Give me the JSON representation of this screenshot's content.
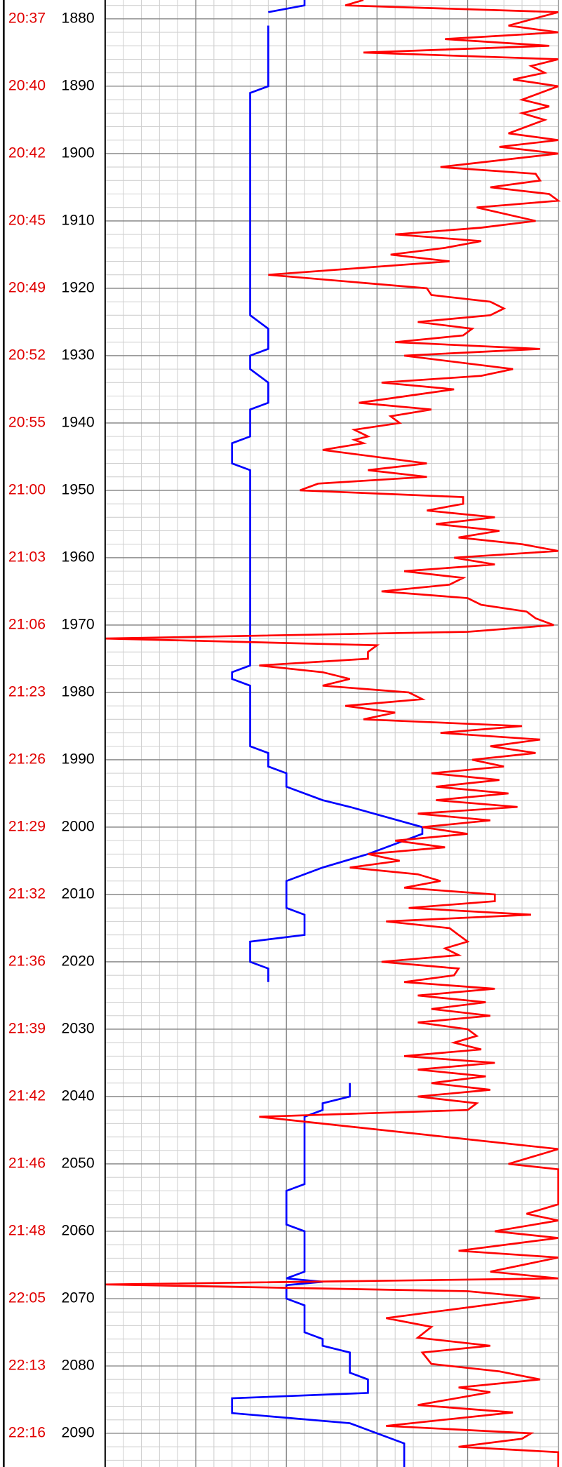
{
  "chart_data": {
    "type": "well-log",
    "ylim": [
      1877.2,
      2095
    ],
    "yticks": [
      1880,
      1890,
      1900,
      1910,
      1920,
      1930,
      1940,
      1950,
      1960,
      1970,
      1980,
      1990,
      2000,
      2010,
      2020,
      2030,
      2040,
      2050,
      2060,
      2070,
      2080,
      2090
    ],
    "time_labels": [
      "20:37",
      "20:40",
      "20:42",
      "20:45",
      "20:49",
      "20:52",
      "20:55",
      "21:00",
      "21:03",
      "21:06",
      "21:23",
      "21:26",
      "21:29",
      "21:32",
      "21:36",
      "21:39",
      "21:42",
      "21:46",
      "21:48",
      "22:05",
      "22:13",
      "22:16"
    ],
    "time_color": "#e00000",
    "xlim": [
      0,
      100
    ],
    "xticks": [
      0,
      20,
      40,
      60,
      80,
      100
    ],
    "grid": true,
    "series": [
      {
        "color": "#0000ff",
        "depth": [
          1877.2,
          1878,
          1879,
          null,
          1881,
          1890,
          1891,
          1924,
          1926,
          1929,
          1930,
          1932,
          1934,
          1937,
          1938,
          1942,
          1943,
          1946,
          1947,
          1976,
          1977,
          1978,
          1979,
          1988,
          1989,
          1991,
          1992,
          1994,
          1996,
          1997,
          2000,
          2001,
          2004,
          2006,
          2008,
          2012,
          2013,
          2016,
          2017,
          2020,
          2021,
          2023,
          null,
          2038,
          2040,
          2041,
          2042,
          2043,
          2053,
          2054,
          2059,
          2060,
          2066,
          2067,
          2067.5,
          2068,
          2070,
          2071,
          2075,
          2076,
          2077,
          2078,
          2081,
          2082,
          2084,
          2084.8,
          2087,
          2088.5,
          2091.5,
          2095
        ],
        "values": [
          44,
          44,
          36,
          null,
          36,
          36,
          32,
          32,
          36,
          36,
          32,
          32,
          36,
          36,
          32,
          32,
          28,
          28,
          32,
          32,
          28,
          28,
          32,
          32,
          36,
          36,
          40,
          40,
          48,
          54,
          70,
          70,
          58,
          48,
          40,
          40,
          44,
          44,
          32,
          32,
          36,
          36,
          null,
          54,
          54,
          48,
          48,
          44,
          44,
          40,
          40,
          44,
          44,
          40,
          48,
          40,
          40,
          44,
          44,
          48,
          48,
          54,
          54,
          58,
          58,
          28,
          28,
          54,
          66,
          66
        ]
      },
      {
        "color": "#ff0000",
        "depth": [
          1877.2,
          1878,
          1879,
          1881,
          1882,
          1883,
          1884,
          1885,
          1886,
          1887,
          1888,
          1889,
          1890,
          1891,
          1892,
          1893,
          1894,
          1895,
          1897,
          1898,
          1899,
          1900,
          1902,
          1903,
          1904,
          1905,
          1906,
          1907,
          1908,
          1910,
          1911,
          1912,
          1913,
          1914,
          1915,
          1916,
          1918,
          1920,
          1921,
          1922,
          1923,
          1924,
          1925,
          1926,
          1927,
          1928,
          1929,
          1930,
          1932,
          1933,
          1934,
          1935,
          1937,
          1938,
          1939,
          1940,
          1941,
          1942,
          1942.5,
          1943,
          1944,
          1946,
          1947,
          1948,
          1949,
          1950,
          1951,
          1952,
          1953,
          1954,
          1955,
          1956,
          1957,
          1958,
          1959,
          1960,
          1961,
          1962,
          1963,
          1964,
          1965,
          1966,
          1967,
          1968,
          1969,
          1970,
          1971,
          1972,
          1973,
          1974,
          1975,
          1976,
          1977,
          1978,
          1979,
          1980,
          1981,
          1982,
          1983,
          1984,
          1985,
          1986,
          1987,
          1988,
          1989,
          1990,
          1991,
          1992,
          1993,
          1994,
          1995,
          1996,
          1997,
          1998,
          1999,
          2000,
          2001,
          2002,
          2003,
          2004,
          2005,
          2006,
          2007,
          2008,
          2009,
          2010,
          2011,
          2012,
          2013,
          2014,
          2015,
          2016,
          2017,
          2018,
          2019,
          2020,
          2021,
          2022,
          2023,
          2024,
          2025,
          2026,
          2027,
          2028,
          2029,
          2030,
          2031,
          2032,
          2033,
          2034,
          2035,
          2036,
          2037,
          2038,
          2039,
          2040,
          2041,
          2042,
          2043,
          2047.8,
          2050,
          2050.8,
          2056,
          2057.4,
          2058.4,
          2060,
          2061,
          2062.9,
          2063.9,
          2066,
          2067,
          2067.9,
          2068.9,
          2069.9,
          2072.9,
          2074.2,
          2075.8,
          2077,
          2078,
          2079.7,
          2080.8,
          2082,
          2083.2,
          2083.9,
          2085.8,
          2086.9,
          2088.9,
          2090,
          2090.8,
          2092,
          2092.8,
          2095
        ],
        "values": [
          57,
          53,
          100,
          89,
          100,
          75,
          98,
          57,
          100,
          94,
          97,
          90,
          100,
          96,
          92,
          98,
          92,
          97,
          89,
          100,
          87,
          100,
          74,
          95,
          96,
          85,
          98,
          100,
          82,
          95,
          83,
          64,
          83,
          75,
          63,
          76,
          36,
          71,
          72,
          85,
          88,
          85,
          69,
          81,
          79,
          64,
          96,
          66,
          90,
          83,
          61,
          77,
          56,
          72,
          63,
          65,
          55,
          58,
          55,
          57,
          48,
          71,
          58,
          71,
          47,
          43,
          79,
          79,
          71,
          86,
          73,
          87,
          78,
          92,
          100,
          77,
          86,
          66,
          79,
          76,
          61,
          80,
          83,
          93,
          95,
          99,
          80,
          0,
          60,
          58,
          58,
          34,
          48,
          54,
          48,
          67,
          70,
          53,
          64,
          57,
          92,
          74,
          96,
          85,
          95,
          81,
          88,
          72,
          87,
          73,
          89,
          73,
          91,
          69,
          85,
          70,
          80,
          64,
          75,
          58,
          65,
          54,
          69,
          74,
          66,
          86,
          86,
          67,
          94,
          62,
          76,
          78,
          80,
          75,
          78,
          61,
          78,
          77,
          66,
          86,
          69,
          84,
          72,
          85,
          69,
          80,
          82,
          77,
          83,
          66,
          86,
          69,
          84,
          72,
          85,
          69,
          82,
          80,
          34,
          100,
          89,
          100,
          100,
          93,
          100,
          86,
          100,
          78,
          100,
          85,
          100,
          0,
          80,
          96,
          62,
          72,
          69,
          85,
          70,
          72,
          87,
          96,
          78,
          85,
          69,
          90,
          62,
          94,
          92,
          78,
          100,
          100
        ]
      }
    ]
  }
}
